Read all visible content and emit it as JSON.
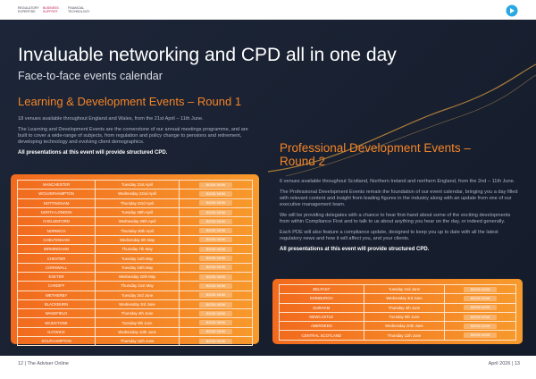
{
  "nav": [
    "REGULATORY EXPERTISE",
    "BUSINESS SUPPORT",
    "FINANCIAL TECHNOLOGY"
  ],
  "title": "Invaluable networking and CPD all in one day",
  "subtitle": "Face-to-face events calendar",
  "round1": {
    "heading": "Learning & Development Events – Round 1",
    "paragraphs": [
      "18 venues available throughout England and Wales, from the 21st April – 11th June.",
      "The Learning and Development Events are the cornerstone of our annual meetings programme, and are built to cover a wide-range of subjects, from regulation and policy change to pensions and retirement, developing technology and evolving client demographics."
    ],
    "cpd": "All presentations at this event will provide structured CPD.",
    "button": "BOOK NOW",
    "rows": [
      [
        "MANCHESTER",
        "Tuesday 21st April"
      ],
      [
        "WOLVERHAMPTON",
        "Wednesday 22nd April"
      ],
      [
        "NOTTINGHAM",
        "Thursday 23rd April"
      ],
      [
        "NORTH LONDON",
        "Tuesday 28th April"
      ],
      [
        "CHELMSFORD",
        "Wednesday 29th April"
      ],
      [
        "NORWICH",
        "Thursday 30th April"
      ],
      [
        "CHELTENHAM",
        "Wednesday 6th May"
      ],
      [
        "BIRMINGHAM",
        "Thursday 7th May"
      ],
      [
        "CHESTER",
        "Tuesday 12th May"
      ],
      [
        "CORNWALL",
        "Tuesday 19th May"
      ],
      [
        "EXETER",
        "Wednesday 20th May"
      ],
      [
        "CARDIFF",
        "Thursday 21st May"
      ],
      [
        "WETHERBY",
        "Tuesday 2nd June"
      ],
      [
        "BLACKBURN",
        "Wednesday 3rd June"
      ],
      [
        "WAKEFIELD",
        "Thursday 4th June"
      ],
      [
        "MAIDSTONE",
        "Tuesday 9th June"
      ],
      [
        "GATWICK",
        "Wednesday 10th June"
      ],
      [
        "SOUTHAMPTON",
        "Thursday 11th June"
      ]
    ]
  },
  "round2": {
    "heading": "Professional Development Events – Round 2",
    "paragraphs": [
      "6 venues available throughout Scotland, Northern Ireland and northern England, from the 2nd – 11th June.",
      "The Professional Development Events remain the foundation of our event calendar, bringing you a day filled with relevant content and insight from leading figures in the industry along with an update from one of our executive management team.",
      "We will be providing delegates with a chance to hear first-hand about some of the exciting developments from within Compliance First and to talk to us about anything you hear on the day, or indeed generally.",
      "Each PDE will also feature a compliance update, designed to keep you up to date with all the latest regulatory news and how it will affect you, and your clients."
    ],
    "cpd": "All presentations at this event will provide structured CPD.",
    "button": "BOOK NOW",
    "rows": [
      [
        "BELFAST",
        "Tuesday 2nd June"
      ],
      [
        "EDINBURGH",
        "Wednesday 3rd June"
      ],
      [
        "DURHAM",
        "Thursday 4th June"
      ],
      [
        "NEWCASTLE",
        "Tuesday 9th June"
      ],
      [
        "ABERDEEN",
        "Wednesday 10th June"
      ],
      [
        "CENTRAL SCOTLAND",
        "Thursday 11th June"
      ]
    ]
  },
  "footer": {
    "left": "12 | The Adviser Online",
    "right": "April 2026 | 13"
  }
}
